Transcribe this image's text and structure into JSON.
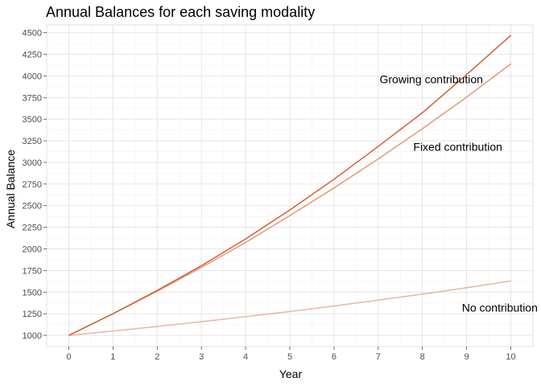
{
  "chart_data": {
    "type": "line",
    "title": "Annual Balances for each saving modality",
    "xlabel": "Year",
    "ylabel": "Annual Balance",
    "x": [
      0,
      1,
      2,
      3,
      4,
      5,
      6,
      7,
      8,
      9,
      10
    ],
    "xlim": [
      -0.5,
      10.5
    ],
    "ylim": [
      870,
      4590
    ],
    "xticks": [
      0,
      1,
      2,
      3,
      4,
      5,
      6,
      7,
      8,
      9,
      10
    ],
    "yticks": [
      1000,
      1250,
      1500,
      1750,
      2000,
      2250,
      2500,
      2750,
      3000,
      3250,
      3500,
      3750,
      4000,
      4250,
      4500
    ],
    "grid": true,
    "legend": "none",
    "series": [
      {
        "name": "Growing contribution",
        "color": "#d35f2f",
        "values": [
          1000,
          1250,
          1520,
          1805,
          2115,
          2450,
          2805,
          3185,
          3575,
          4015,
          4470
        ]
      },
      {
        "name": "Fixed contribution",
        "color": "#e49a78",
        "values": [
          1000,
          1250,
          1510,
          1785,
          2075,
          2385,
          2705,
          3040,
          3390,
          3755,
          4140
        ]
      },
      {
        "name": "No contribution",
        "color": "#eab69e",
        "values": [
          1000,
          1050,
          1103,
          1158,
          1216,
          1276,
          1340,
          1407,
          1477,
          1551,
          1629
        ]
      }
    ],
    "annotations": [
      {
        "text": "Growing contribution",
        "x": 8.2,
        "y": 3960
      },
      {
        "text": "Fixed contribution",
        "x": 8.8,
        "y": 3180
      },
      {
        "text": "No contribution",
        "x": 9.75,
        "y": 1320
      }
    ]
  }
}
